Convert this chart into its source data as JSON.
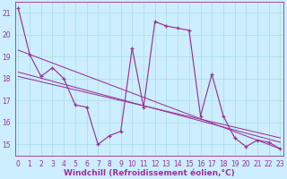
{
  "xlabel": "Windchill (Refroidissement éolien,°C)",
  "bg_color": "#cceeff",
  "line_color": "#993399",
  "x_values": [
    0,
    1,
    2,
    3,
    4,
    5,
    6,
    7,
    8,
    9,
    10,
    11,
    12,
    13,
    14,
    15,
    16,
    17,
    18,
    19,
    20,
    21,
    22,
    23
  ],
  "main_line": [
    21.2,
    19.1,
    18.1,
    18.5,
    18.0,
    16.8,
    16.7,
    15.0,
    15.4,
    15.6,
    19.4,
    16.7,
    20.6,
    20.4,
    20.3,
    20.2,
    16.3,
    18.2,
    16.3,
    15.3,
    14.9,
    15.2,
    15.1,
    14.8
  ],
  "reg_lines": [
    [
      [
        0,
        23
      ],
      [
        19.3,
        14.8
      ]
    ],
    [
      [
        0,
        23
      ],
      [
        18.3,
        15.1
      ]
    ],
    [
      [
        0,
        23
      ],
      [
        18.1,
        15.3
      ]
    ]
  ],
  "ylim": [
    14.5,
    21.5
  ],
  "xlim": [
    -0.3,
    23.3
  ],
  "yticks": [
    15,
    16,
    17,
    18,
    19,
    20,
    21
  ],
  "xticks": [
    0,
    1,
    2,
    3,
    4,
    5,
    6,
    7,
    8,
    9,
    10,
    11,
    12,
    13,
    14,
    15,
    16,
    17,
    18,
    19,
    20,
    21,
    22,
    23
  ],
  "xlabel_fontsize": 6.5,
  "xlabel_color": "#993399",
  "tick_fontsize": 5.5,
  "grid_color": "#aadddd",
  "spine_color": "#993399"
}
